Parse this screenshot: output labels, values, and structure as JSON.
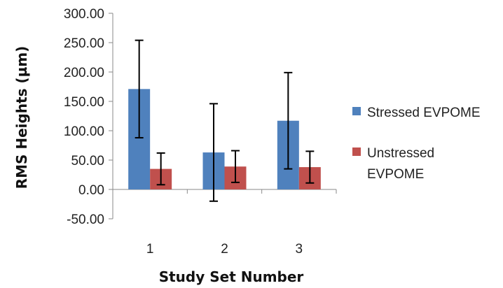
{
  "chart_data": {
    "type": "bar",
    "categories": [
      "1",
      "2",
      "3"
    ],
    "series": [
      {
        "name": "Stressed EVPOME",
        "values": [
          171,
          63,
          117
        ],
        "error": [
          83,
          83,
          82
        ],
        "color": "#4F81BD"
      },
      {
        "name": "Unstressed EVPOME",
        "values": [
          35,
          39,
          38
        ],
        "error": [
          27,
          27,
          27
        ],
        "color": "#C0504D"
      }
    ],
    "ylim": [
      -50,
      300
    ],
    "yticks": [
      300,
      250,
      200,
      150,
      100,
      50,
      0,
      -50
    ],
    "ytick_labels": [
      "300.00",
      "250.00",
      "200.00",
      "150.00",
      "100.00",
      "50.00",
      "0.00",
      "-50.00"
    ],
    "xlabel": "Study Set Number",
    "ylabel": "RMS Heights (µm)",
    "legend": {
      "position": "right",
      "items": [
        {
          "lines": [
            "Stressed EVPOME"
          ],
          "color": "#4F81BD"
        },
        {
          "lines": [
            "Unstressed",
            "EVPOME"
          ],
          "color": "#C0504D"
        }
      ]
    },
    "grid": false,
    "error_bars": true
  }
}
